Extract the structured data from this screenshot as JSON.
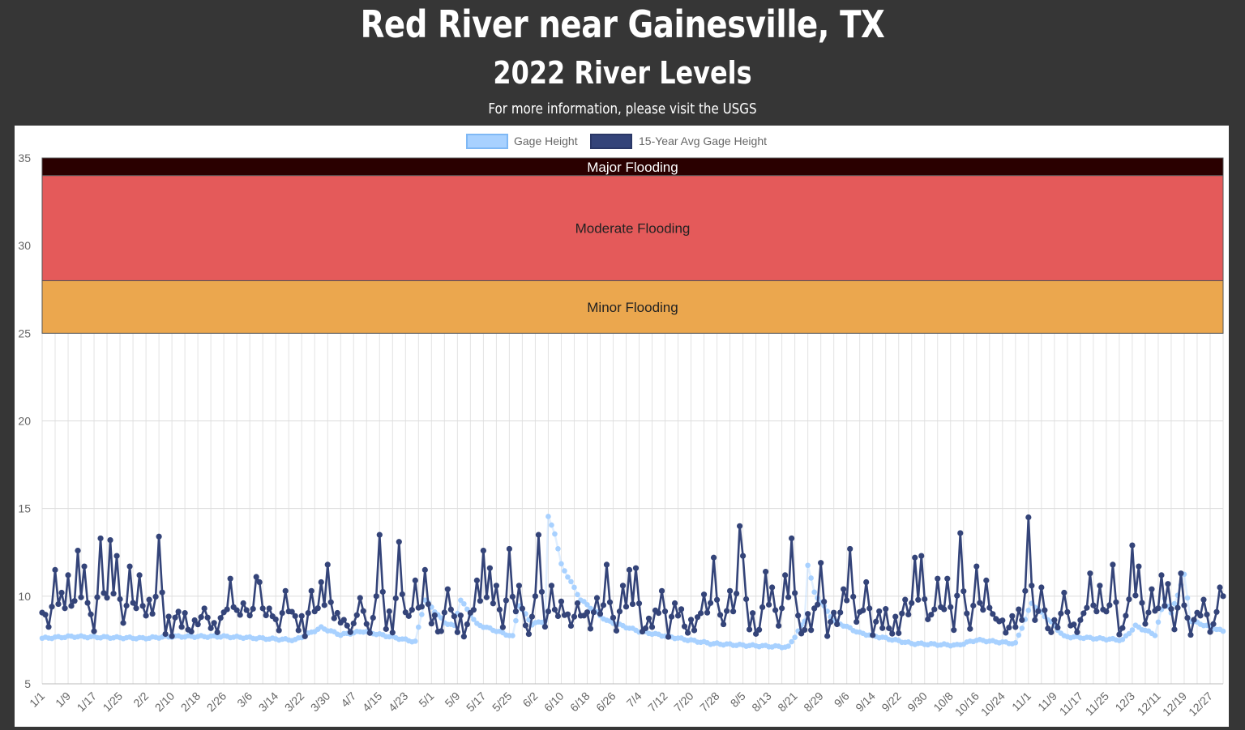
{
  "page": {
    "title": "Red River near Gainesville, TX",
    "subtitle": "2022 River Levels",
    "info_prefix": "For more information, please visit the ",
    "info_link": "USGS"
  },
  "chart_data": {
    "type": "line",
    "legend_position": "top-center",
    "grid": true,
    "ylim": [
      5,
      35
    ],
    "y_ticks": [
      5,
      10,
      15,
      20,
      25,
      30,
      35
    ],
    "x_start": "2022-01-01",
    "x_labels": [
      "1/1",
      "1/9",
      "1/17",
      "1/25",
      "2/2",
      "2/10",
      "2/18",
      "2/26",
      "3/6",
      "3/14",
      "3/22",
      "3/30",
      "4/7",
      "4/15",
      "4/23",
      "5/1",
      "5/9",
      "5/17",
      "5/25",
      "6/2",
      "6/10",
      "6/18",
      "6/26",
      "7/4",
      "7/12",
      "7/20",
      "7/28",
      "8/5",
      "8/13",
      "8/21",
      "8/29",
      "9/6",
      "9/14",
      "9/22",
      "9/30",
      "10/8",
      "10/16",
      "10/24",
      "11/1",
      "11/9",
      "11/17",
      "11/25",
      "12/3",
      "12/11",
      "12/19",
      "12/27"
    ],
    "bands": [
      {
        "label": "Minor Flooding",
        "from": 25,
        "to": 28,
        "color": "#eba74e"
      },
      {
        "label": "Moderate Flooding",
        "from": 28,
        "to": 34,
        "color": "#e45a5a"
      },
      {
        "label": "Major Flooding",
        "from": 34,
        "to": 35,
        "color": "#2a0000"
      }
    ],
    "series": [
      {
        "name": "Gage Height",
        "color": "#a8d1ff",
        "anchors": [
          [
            "2022-01-01",
            7.6
          ],
          [
            "2022-01-10",
            7.7
          ],
          [
            "2022-02-01",
            7.6
          ],
          [
            "2022-02-10",
            7.7
          ],
          [
            "2022-02-26",
            7.7
          ],
          [
            "2022-03-20",
            7.5
          ],
          [
            "2022-03-28",
            8.2
          ],
          [
            "2022-04-03",
            7.8
          ],
          [
            "2022-04-10",
            8.0
          ],
          [
            "2022-04-26",
            7.4
          ],
          [
            "2022-04-29",
            9.8
          ],
          [
            "2022-05-05",
            8.5
          ],
          [
            "2022-05-08",
            8.3
          ],
          [
            "2022-05-10",
            9.8
          ],
          [
            "2022-05-15",
            8.4
          ],
          [
            "2022-05-26",
            7.7
          ],
          [
            "2022-05-28",
            9.5
          ],
          [
            "2022-06-01",
            8.4
          ],
          [
            "2022-06-05",
            8.6
          ],
          [
            "2022-06-06",
            14.5
          ],
          [
            "2022-06-08",
            13.6
          ],
          [
            "2022-06-10",
            11.8
          ],
          [
            "2022-06-16",
            9.8
          ],
          [
            "2022-06-24",
            8.6
          ],
          [
            "2022-07-04",
            8.0
          ],
          [
            "2022-07-16",
            7.6
          ],
          [
            "2022-07-26",
            7.3
          ],
          [
            "2022-08-05",
            7.2
          ],
          [
            "2022-08-19",
            7.1
          ],
          [
            "2022-08-24",
            8.6
          ],
          [
            "2022-08-25",
            11.8
          ],
          [
            "2022-08-27",
            10.2
          ],
          [
            "2022-09-02",
            8.6
          ],
          [
            "2022-09-10",
            7.9
          ],
          [
            "2022-09-26",
            7.3
          ],
          [
            "2022-10-10",
            7.2
          ],
          [
            "2022-10-16",
            7.5
          ],
          [
            "2022-10-28",
            7.3
          ],
          [
            "2022-11-02",
            9.6
          ],
          [
            "2022-11-08",
            8.5
          ],
          [
            "2022-11-12",
            7.7
          ],
          [
            "2022-11-30",
            7.5
          ],
          [
            "2022-12-04",
            8.3
          ],
          [
            "2022-12-10",
            7.8
          ],
          [
            "2022-12-13",
            9.9
          ],
          [
            "2022-12-15",
            9.0
          ],
          [
            "2022-12-19",
            11.2
          ],
          [
            "2022-12-21",
            8.6
          ],
          [
            "2022-12-31",
            8.0
          ]
        ]
      },
      {
        "name": "15-Year Avg Gage Height",
        "color": "#344479",
        "baseline": 8.5,
        "peaks": [
          [
            "2022-01-05",
            11.5
          ],
          [
            "2022-01-07",
            10.2
          ],
          [
            "2022-01-09",
            11.2
          ],
          [
            "2022-01-12",
            12.6
          ],
          [
            "2022-01-14",
            11.7
          ],
          [
            "2022-01-19",
            13.3
          ],
          [
            "2022-01-22",
            13.2
          ],
          [
            "2022-01-24",
            12.3
          ],
          [
            "2022-01-28",
            11.7
          ],
          [
            "2022-01-31",
            11.2
          ],
          [
            "2022-02-03",
            9.8
          ],
          [
            "2022-02-06",
            13.4
          ],
          [
            "2022-02-20",
            9.3
          ],
          [
            "2022-02-28",
            11.0
          ],
          [
            "2022-03-02",
            9.2
          ],
          [
            "2022-03-04",
            9.6
          ],
          [
            "2022-03-08",
            11.1
          ],
          [
            "2022-03-09",
            10.8
          ],
          [
            "2022-03-12",
            9.3
          ],
          [
            "2022-03-17",
            10.3
          ],
          [
            "2022-03-25",
            10.3
          ],
          [
            "2022-03-28",
            10.8
          ],
          [
            "2022-03-30",
            11.8
          ],
          [
            "2022-04-09",
            9.9
          ],
          [
            "2022-04-15",
            13.5
          ],
          [
            "2022-04-21",
            13.1
          ],
          [
            "2022-04-26",
            10.9
          ],
          [
            "2022-04-29",
            11.5
          ],
          [
            "2022-05-06",
            10.4
          ],
          [
            "2022-05-15",
            10.9
          ],
          [
            "2022-05-17",
            12.6
          ],
          [
            "2022-05-19",
            11.6
          ],
          [
            "2022-05-21",
            10.6
          ],
          [
            "2022-05-25",
            12.7
          ],
          [
            "2022-05-28",
            10.6
          ],
          [
            "2022-06-03",
            13.5
          ],
          [
            "2022-06-07",
            10.6
          ],
          [
            "2022-06-10",
            9.7
          ],
          [
            "2022-06-15",
            9.6
          ],
          [
            "2022-06-21",
            9.9
          ],
          [
            "2022-06-24",
            11.8
          ],
          [
            "2022-06-29",
            10.6
          ],
          [
            "2022-07-01",
            11.5
          ],
          [
            "2022-07-03",
            11.6
          ],
          [
            "2022-07-11",
            10.3
          ],
          [
            "2022-07-15",
            9.6
          ],
          [
            "2022-07-24",
            10.1
          ],
          [
            "2022-07-27",
            12.2
          ],
          [
            "2022-08-01",
            10.3
          ],
          [
            "2022-08-04",
            14.0
          ],
          [
            "2022-08-05",
            12.3
          ],
          [
            "2022-08-12",
            11.4
          ],
          [
            "2022-08-14",
            10.5
          ],
          [
            "2022-08-18",
            11.2
          ],
          [
            "2022-08-20",
            13.3
          ],
          [
            "2022-08-29",
            11.9
          ],
          [
            "2022-09-05",
            10.4
          ],
          [
            "2022-09-07",
            12.7
          ],
          [
            "2022-09-12",
            10.8
          ],
          [
            "2022-09-24",
            9.8
          ],
          [
            "2022-09-27",
            12.2
          ],
          [
            "2022-09-29",
            12.3
          ],
          [
            "2022-10-04",
            11.0
          ],
          [
            "2022-10-07",
            11.0
          ],
          [
            "2022-10-11",
            13.6
          ],
          [
            "2022-10-16",
            11.7
          ],
          [
            "2022-10-19",
            10.9
          ],
          [
            "2022-11-01",
            14.5
          ],
          [
            "2022-11-05",
            10.5
          ],
          [
            "2022-11-12",
            10.2
          ],
          [
            "2022-11-20",
            11.3
          ],
          [
            "2022-11-23",
            10.6
          ],
          [
            "2022-11-27",
            11.8
          ],
          [
            "2022-12-03",
            12.9
          ],
          [
            "2022-12-05",
            11.7
          ],
          [
            "2022-12-09",
            10.4
          ],
          [
            "2022-12-12",
            11.2
          ],
          [
            "2022-12-14",
            10.7
          ],
          [
            "2022-12-18",
            11.3
          ],
          [
            "2022-12-25",
            9.8
          ],
          [
            "2022-12-30",
            10.5
          ],
          [
            "2022-12-31",
            10.0
          ]
        ]
      }
    ]
  }
}
